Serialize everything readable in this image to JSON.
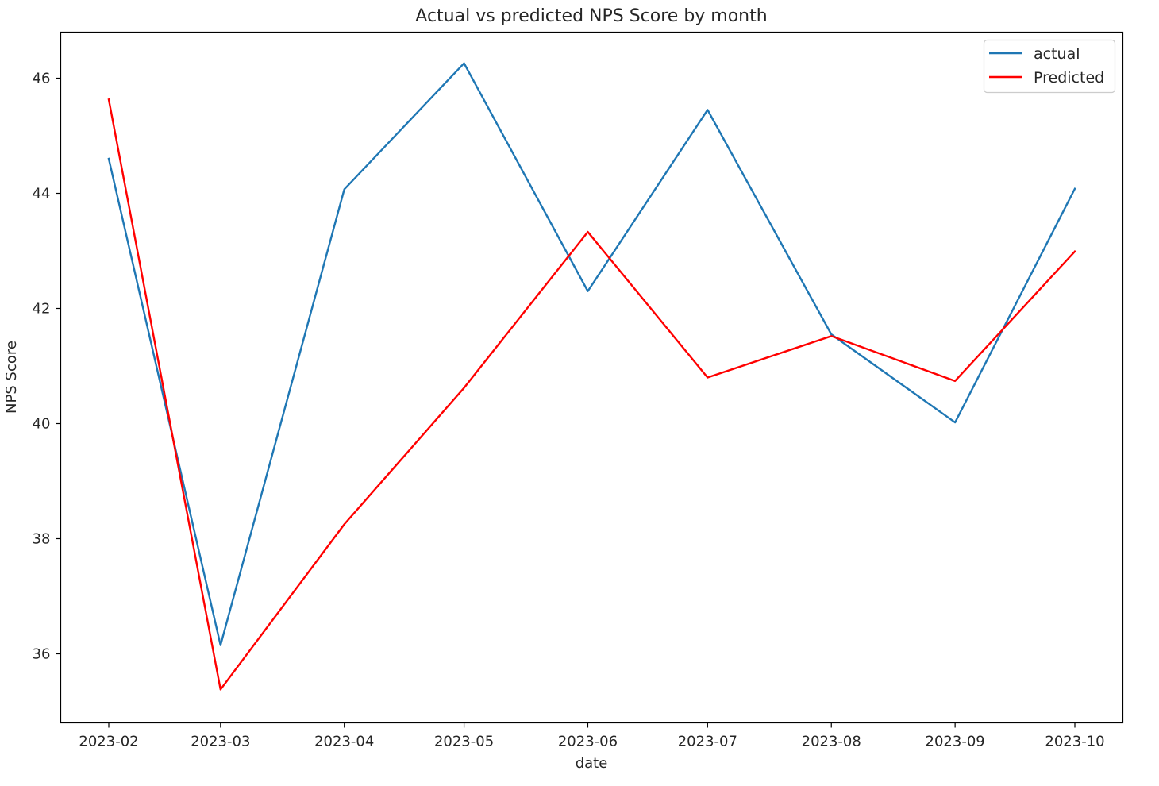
{
  "chart_data": {
    "type": "line",
    "title": "Actual vs predicted NPS Score by month",
    "xlabel": "date",
    "ylabel": "NPS Score",
    "x": [
      "2023-02-01",
      "2023-03-01",
      "2023-04-01",
      "2023-05-01",
      "2023-06-01",
      "2023-07-01",
      "2023-08-01",
      "2023-09-01",
      "2023-10-01"
    ],
    "x_tick_labels": [
      "2023-02",
      "2023-03",
      "2023-04",
      "2023-05",
      "2023-06",
      "2023-07",
      "2023-08",
      "2023-09",
      "2023-10"
    ],
    "y_ticks": [
      36,
      38,
      40,
      42,
      44,
      46
    ],
    "ylim": [
      34.8,
      46.8
    ],
    "series": [
      {
        "name": "actual",
        "color": "#1f77b4",
        "values": [
          44.6,
          36.15,
          44.07,
          46.26,
          42.3,
          45.45,
          41.55,
          40.02,
          44.08
        ]
      },
      {
        "name": "Predicted",
        "color": "#ff0000",
        "values": [
          45.63,
          35.38,
          38.25,
          40.62,
          43.33,
          40.8,
          41.52,
          40.74,
          42.99
        ]
      }
    ],
    "legend_position": "top-right",
    "grid": false
  }
}
